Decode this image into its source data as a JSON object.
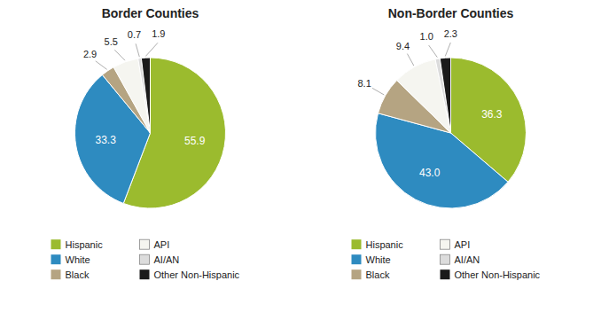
{
  "chart_data": [
    {
      "type": "pie",
      "title": "Border Counties",
      "categories": [
        "Hispanic",
        "White",
        "Black",
        "API",
        "AI/AN",
        "Other Non-Hispanic"
      ],
      "values": [
        55.9,
        33.3,
        2.9,
        5.5,
        0.7,
        1.9
      ],
      "value_labels": [
        "55.9",
        "33.3",
        "2.9",
        "5.5",
        "0.7",
        "1.9"
      ],
      "colors": [
        "#9BBB2E",
        "#2E8BC0",
        "#B5A482",
        "#F5F5F0",
        "#DCDCDC",
        "#1A1A1A"
      ],
      "data_labels": true,
      "legend": "bottom"
    },
    {
      "type": "pie",
      "title": "Non-Border Counties",
      "categories": [
        "Hispanic",
        "White",
        "Black",
        "API",
        "AI/AN",
        "Other Non-Hispanic"
      ],
      "values": [
        36.3,
        43.0,
        8.1,
        9.4,
        1.0,
        2.3
      ],
      "value_labels": [
        "36.3",
        "43.0",
        "8.1",
        "9.4",
        "1.0",
        "2.3"
      ],
      "colors": [
        "#9BBB2E",
        "#2E8BC0",
        "#B5A482",
        "#F5F5F0",
        "#DCDCDC",
        "#1A1A1A"
      ],
      "data_labels": true,
      "legend": "bottom"
    }
  ]
}
